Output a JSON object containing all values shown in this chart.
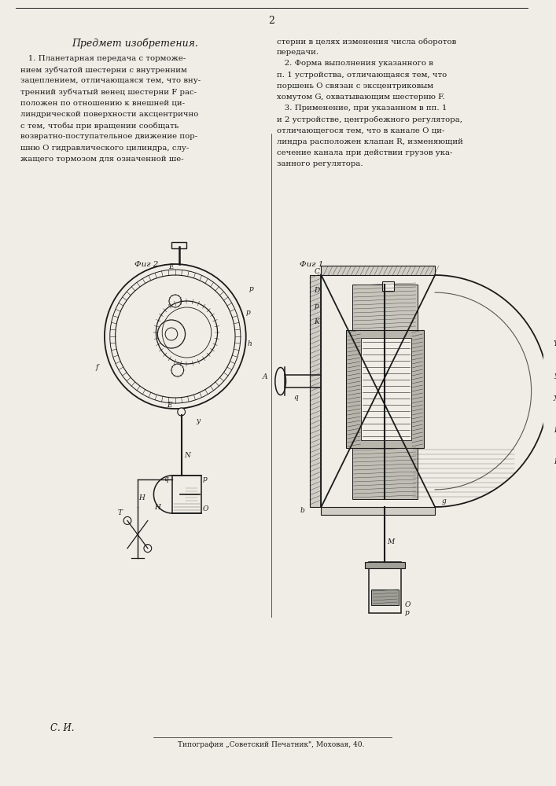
{
  "page_number": "2",
  "background_color": "#f0ede6",
  "text_color": "#1a1a1a",
  "header_text": "Предмет изобретения.",
  "col1_text": [
    "   1. Планетарная передача с торможе-",
    "нием зубчатой шестерни с внутренним",
    "зацеплением, отличающаяся тем, что вну-",
    "тренний зубчатый венец шестерни F рас-",
    "положен по отношению к внешней ци-",
    "линдрической поверхности аксцентрично",
    "с тем, чтобы при вращении сообщать",
    "возвратно-поступательное движение пор-",
    "шню O гидравлического цилиндра, слу-",
    "жащего тормозом для означенной ше-"
  ],
  "col2_text": [
    "стерни в целях изменения числа оборотов",
    "передачи.",
    "   2. Форма выполнения указанного в",
    "п. 1 устройства, отличающаяся тем, что",
    "поршень O связан с эксцентриковым",
    "хомутом G, охватывающим шестерню F.",
    "   3. Применение, при указанном в пп. 1",
    "и 2 устройстве, центробежного регулятора,",
    "отличающегося тем, что в канале O ци-",
    "линдра расположен клапан R, изменяющий",
    "сечение канала при действии грузов ука-",
    "занного регулятора."
  ],
  "fig2_label": "Фиг 2",
  "fig1_label": "Фиг 1",
  "footer_left": "С. И.",
  "footer_center": "Типография „Советский Печатник\", Моховая, 40.",
  "line_color": "#1a1a1a",
  "hatch_color": "#3a3a3a"
}
